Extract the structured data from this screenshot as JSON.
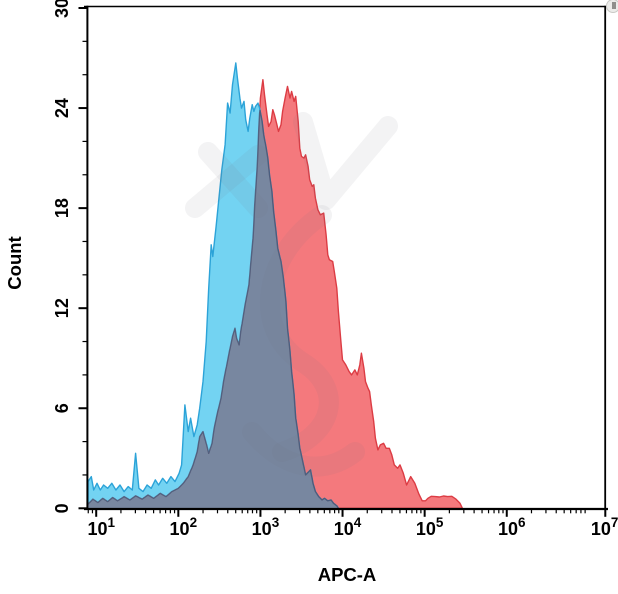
{
  "figure": {
    "x_axis": {
      "label": "APC-A",
      "scale": "log10",
      "tick_exponents": [
        "1",
        "2",
        "3",
        "4",
        "5",
        "6",
        "7.2"
      ],
      "minor_tick_step": "log decades 2-9"
    },
    "y_axis": {
      "label": "Count",
      "tick_values": [
        "0",
        "6",
        "12",
        "18",
        "24",
        "30"
      ],
      "minor_tick_step": 2,
      "max": 30
    }
  },
  "chart_data": {
    "type": "area",
    "title": "",
    "xlabel": "APC-A",
    "ylabel": "Count",
    "x_scale": "log10",
    "xlim_log10": [
      0.9,
      7.2
    ],
    "ylim": [
      0,
      30
    ],
    "grid": false,
    "legend": "none",
    "axis_color": "#000000",
    "overlap_fill": "#7887A0",
    "overlap_stroke": "#4A4F6E",
    "series": [
      {
        "name": "blue-histogram",
        "fill": "#73D3F2",
        "stroke": "#2CA3D8",
        "points_log10x_count": [
          [
            0.9,
            1.6
          ],
          [
            0.94,
            1.9
          ],
          [
            0.97,
            1.1
          ],
          [
            1.01,
            1.5
          ],
          [
            1.05,
            1.1
          ],
          [
            1.09,
            1.4
          ],
          [
            1.14,
            1.2
          ],
          [
            1.19,
            1.5
          ],
          [
            1.24,
            1.1
          ],
          [
            1.29,
            1.4
          ],
          [
            1.34,
            1.0
          ],
          [
            1.39,
            1.3
          ],
          [
            1.44,
            1.1
          ],
          [
            1.48,
            3.3
          ],
          [
            1.52,
            1.2
          ],
          [
            1.57,
            1.0
          ],
          [
            1.62,
            1.4
          ],
          [
            1.67,
            1.2
          ],
          [
            1.72,
            1.7
          ],
          [
            1.76,
            1.4
          ],
          [
            1.81,
            1.8
          ],
          [
            1.86,
            1.5
          ],
          [
            1.91,
            1.9
          ],
          [
            1.96,
            1.6
          ],
          [
            2.01,
            2.1
          ],
          [
            2.04,
            2.6
          ],
          [
            2.08,
            6.2
          ],
          [
            2.12,
            4.6
          ],
          [
            2.15,
            5.4
          ],
          [
            2.19,
            4.3
          ],
          [
            2.23,
            5.0
          ],
          [
            2.26,
            6.0
          ],
          [
            2.3,
            7.6
          ],
          [
            2.34,
            10.0
          ],
          [
            2.37,
            13.2
          ],
          [
            2.4,
            15.8
          ],
          [
            2.42,
            15.1
          ],
          [
            2.46,
            16.9
          ],
          [
            2.49,
            18.4
          ],
          [
            2.53,
            20.3
          ],
          [
            2.57,
            21.8
          ],
          [
            2.6,
            24.3
          ],
          [
            2.63,
            23.7
          ],
          [
            2.66,
            25.4
          ],
          [
            2.7,
            26.7
          ],
          [
            2.72,
            25.8
          ],
          [
            2.75,
            24.6
          ],
          [
            2.77,
            24.0
          ],
          [
            2.8,
            24.4
          ],
          [
            2.82,
            23.3
          ],
          [
            2.85,
            22.6
          ],
          [
            2.87,
            23.4
          ],
          [
            2.9,
            24.2
          ],
          [
            2.92,
            23.8
          ],
          [
            2.94,
            24.1
          ],
          [
            2.97,
            24.3
          ],
          [
            2.99,
            24.0
          ],
          [
            3.02,
            23.2
          ],
          [
            3.04,
            22.4
          ],
          [
            3.07,
            21.6
          ],
          [
            3.09,
            21.0
          ],
          [
            3.11,
            20.0
          ],
          [
            3.14,
            19.0
          ],
          [
            3.16,
            17.8
          ],
          [
            3.19,
            16.6
          ],
          [
            3.21,
            15.6
          ],
          [
            3.25,
            14.8
          ],
          [
            3.28,
            13.8
          ],
          [
            3.31,
            12.4
          ],
          [
            3.33,
            10.8
          ],
          [
            3.36,
            9.4
          ],
          [
            3.38,
            8.2
          ],
          [
            3.41,
            6.8
          ],
          [
            3.43,
            5.4
          ],
          [
            3.46,
            4.4
          ],
          [
            3.48,
            3.6
          ],
          [
            3.52,
            2.7
          ],
          [
            3.55,
            2.0
          ],
          [
            3.59,
            2.2
          ],
          [
            3.61,
            2.3
          ],
          [
            3.64,
            1.5
          ],
          [
            3.67,
            1.0
          ],
          [
            3.71,
            0.7
          ],
          [
            3.75,
            0.5
          ],
          [
            3.78,
            0.6
          ],
          [
            3.82,
            0.45
          ],
          [
            3.86,
            0.5
          ],
          [
            3.89,
            0.3
          ],
          [
            3.93,
            0.15
          ],
          [
            3.95,
            0
          ]
        ]
      },
      {
        "name": "red-histogram",
        "fill": "#F4797D",
        "stroke": "#DC3C44",
        "points_log10x_count": [
          [
            0.9,
            0.25
          ],
          [
            0.96,
            0.55
          ],
          [
            1.02,
            0.35
          ],
          [
            1.08,
            0.6
          ],
          [
            1.14,
            0.4
          ],
          [
            1.2,
            0.65
          ],
          [
            1.26,
            0.45
          ],
          [
            1.34,
            0.7
          ],
          [
            1.41,
            0.5
          ],
          [
            1.48,
            0.75
          ],
          [
            1.56,
            0.55
          ],
          [
            1.63,
            0.8
          ],
          [
            1.7,
            0.6
          ],
          [
            1.78,
            0.9
          ],
          [
            1.85,
            0.7
          ],
          [
            1.92,
            1.0
          ],
          [
            2.0,
            1.2
          ],
          [
            2.06,
            1.5
          ],
          [
            2.12,
            1.9
          ],
          [
            2.18,
            2.6
          ],
          [
            2.23,
            3.4
          ],
          [
            2.26,
            4.3
          ],
          [
            2.3,
            4.6
          ],
          [
            2.34,
            3.9
          ],
          [
            2.37,
            3.3
          ],
          [
            2.41,
            3.9
          ],
          [
            2.44,
            4.9
          ],
          [
            2.48,
            5.8
          ],
          [
            2.52,
            6.6
          ],
          [
            2.55,
            7.6
          ],
          [
            2.59,
            8.6
          ],
          [
            2.63,
            9.6
          ],
          [
            2.66,
            10.3
          ],
          [
            2.69,
            10.8
          ],
          [
            2.71,
            10.2
          ],
          [
            2.74,
            9.8
          ],
          [
            2.76,
            10.6
          ],
          [
            2.79,
            11.5
          ],
          [
            2.82,
            12.4
          ],
          [
            2.86,
            13.4
          ],
          [
            2.88,
            14.6
          ],
          [
            2.91,
            16.2
          ],
          [
            2.93,
            18.2
          ],
          [
            2.96,
            20.4
          ],
          [
            2.98,
            22.8
          ],
          [
            3.0,
            24.6
          ],
          [
            3.03,
            25.7
          ],
          [
            3.05,
            24.8
          ],
          [
            3.08,
            23.6
          ],
          [
            3.1,
            22.9
          ],
          [
            3.13,
            23.2
          ],
          [
            3.15,
            23.9
          ],
          [
            3.17,
            23.6
          ],
          [
            3.2,
            23.0
          ],
          [
            3.22,
            22.6
          ],
          [
            3.25,
            23.0
          ],
          [
            3.27,
            23.8
          ],
          [
            3.3,
            24.6
          ],
          [
            3.33,
            25.3
          ],
          [
            3.36,
            24.6
          ],
          [
            3.38,
            25.0
          ],
          [
            3.41,
            24.4
          ],
          [
            3.43,
            24.7
          ],
          [
            3.46,
            23.2
          ],
          [
            3.48,
            21.6
          ],
          [
            3.5,
            21.1
          ],
          [
            3.53,
            21.0
          ],
          [
            3.55,
            21.2
          ],
          [
            3.58,
            20.5
          ],
          [
            3.6,
            19.7
          ],
          [
            3.63,
            19.3
          ],
          [
            3.65,
            19.4
          ],
          [
            3.67,
            18.6
          ],
          [
            3.7,
            17.9
          ],
          [
            3.73,
            17.6
          ],
          [
            3.77,
            17.7
          ],
          [
            3.8,
            16.4
          ],
          [
            3.82,
            15.2
          ],
          [
            3.84,
            14.9
          ],
          [
            3.88,
            14.8
          ],
          [
            3.9,
            14.2
          ],
          [
            3.93,
            13.2
          ],
          [
            3.95,
            11.8
          ],
          [
            3.98,
            10.0
          ],
          [
            4.0,
            8.9
          ],
          [
            4.04,
            8.6
          ],
          [
            4.08,
            8.2
          ],
          [
            4.11,
            8.0
          ],
          [
            4.15,
            8.3
          ],
          [
            4.18,
            8.0
          ],
          [
            4.21,
            8.6
          ],
          [
            4.23,
            9.3
          ],
          [
            4.26,
            8.4
          ],
          [
            4.28,
            7.6
          ],
          [
            4.31,
            7.2
          ],
          [
            4.33,
            7.0
          ],
          [
            4.35,
            6.2
          ],
          [
            4.38,
            5.2
          ],
          [
            4.4,
            4.2
          ],
          [
            4.43,
            3.5
          ],
          [
            4.46,
            3.8
          ],
          [
            4.5,
            3.9
          ],
          [
            4.53,
            3.6
          ],
          [
            4.57,
            3.6
          ],
          [
            4.6,
            3.2
          ],
          [
            4.63,
            2.6
          ],
          [
            4.67,
            2.4
          ],
          [
            4.7,
            2.6
          ],
          [
            4.74,
            2.1
          ],
          [
            4.78,
            1.4
          ],
          [
            4.83,
            1.9
          ],
          [
            4.88,
            1.5
          ],
          [
            4.93,
            0.85
          ],
          [
            4.97,
            0.45
          ],
          [
            5.01,
            0.45
          ],
          [
            5.04,
            0.6
          ],
          [
            5.08,
            0.72
          ],
          [
            5.13,
            0.7
          ],
          [
            5.18,
            0.68
          ],
          [
            5.23,
            0.74
          ],
          [
            5.28,
            0.7
          ],
          [
            5.33,
            0.72
          ],
          [
            5.38,
            0.55
          ],
          [
            5.43,
            0.3
          ],
          [
            5.46,
            0
          ]
        ]
      }
    ]
  }
}
